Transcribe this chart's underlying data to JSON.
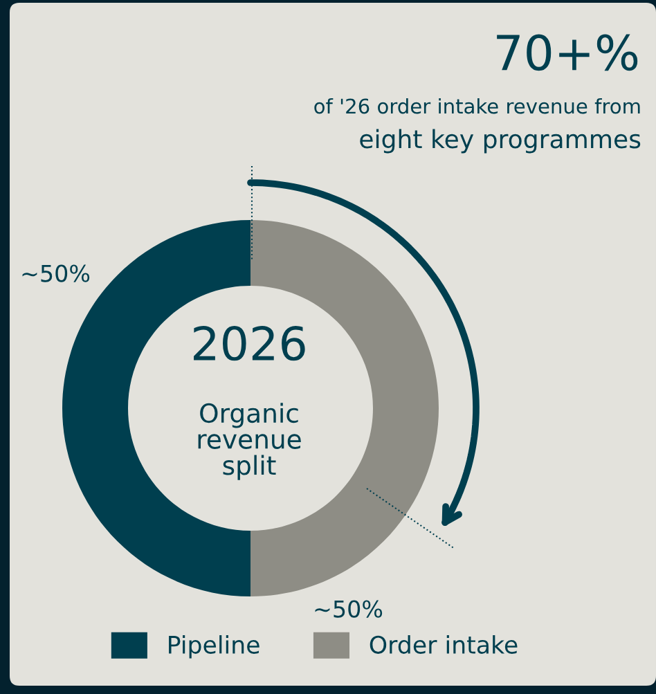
{
  "chart_data": {
    "type": "donut",
    "title": "70+%",
    "subtitle": "of '26 order intake revenue from",
    "annotations": [
      "eight key programmes",
      "2026",
      "Organic\nrevenue\nsplit"
    ],
    "categories": [
      "Pipeline",
      "Order intake"
    ],
    "values": [
      50,
      50
    ],
    "colors": [
      "#003f4f",
      "#8e8d85"
    ],
    "value_labels": [
      "~50%",
      "~50%"
    ],
    "legend": "bottom"
  }
}
